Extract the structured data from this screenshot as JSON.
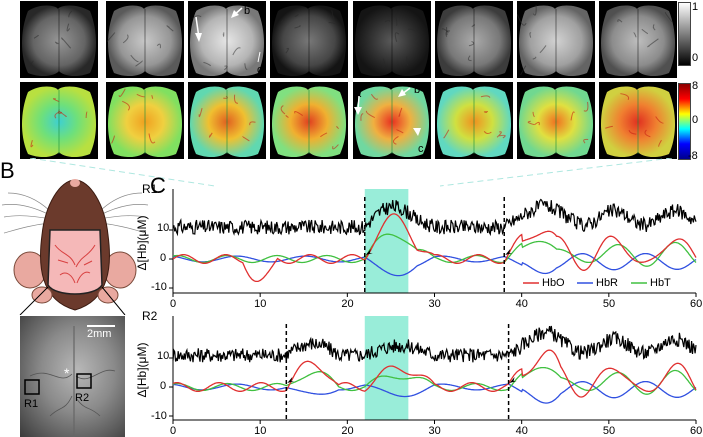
{
  "panel_letters": {
    "b": "B",
    "c": "C"
  },
  "top_row_annotations": {
    "a": "a",
    "b": "b",
    "c": "c"
  },
  "second_row_annotations": {
    "a": "a",
    "b": "b",
    "c": "c"
  },
  "colorbar_gray": {
    "ticks": [
      "1",
      "0"
    ]
  },
  "colorbar_jet": {
    "ticks": [
      "8",
      "0",
      "-8"
    ]
  },
  "mouse_inset": {
    "scale_label": "2mm",
    "roi_labels": [
      "R1",
      "R2"
    ],
    "star": "*"
  },
  "legend": {
    "items": [
      {
        "label": "HbO",
        "color": "#e03030"
      },
      {
        "label": "HbR",
        "color": "#3050e0"
      },
      {
        "label": "HbT",
        "color": "#40c040"
      }
    ]
  },
  "colors": {
    "hbo": "#e03030",
    "hbr": "#3050e0",
    "hbt": "#40c040",
    "raw": "#000000",
    "highlight": "#7fe8d0"
  },
  "chart_data": [
    {
      "type": "line",
      "title": "R1",
      "ylabel": "Δ[Hb](μM)",
      "xlim": [
        0,
        60
      ],
      "x_ticks": [
        "0",
        "10",
        "20",
        "30",
        "40",
        "50",
        "60"
      ],
      "y_ticks": [
        "10",
        "0",
        "-10"
      ],
      "highlight": [
        22,
        27
      ],
      "event_markers": [
        22,
        38
      ],
      "series": [
        {
          "name": "HbO"
        },
        {
          "name": "HbR"
        },
        {
          "name": "HbT"
        }
      ]
    },
    {
      "type": "line",
      "title": "R2",
      "ylabel": "Δ[Hb](μM)",
      "xlim": [
        0,
        60
      ],
      "x_ticks": [
        "0",
        "10",
        "20",
        "30",
        "40",
        "50",
        "60"
      ],
      "y_ticks": [
        "10",
        "0",
        "-10"
      ],
      "highlight": [
        22,
        27
      ],
      "event_markers": [
        13,
        38.5
      ],
      "series": [
        {
          "name": "HbO"
        },
        {
          "name": "HbR"
        },
        {
          "name": "HbT"
        }
      ]
    }
  ]
}
